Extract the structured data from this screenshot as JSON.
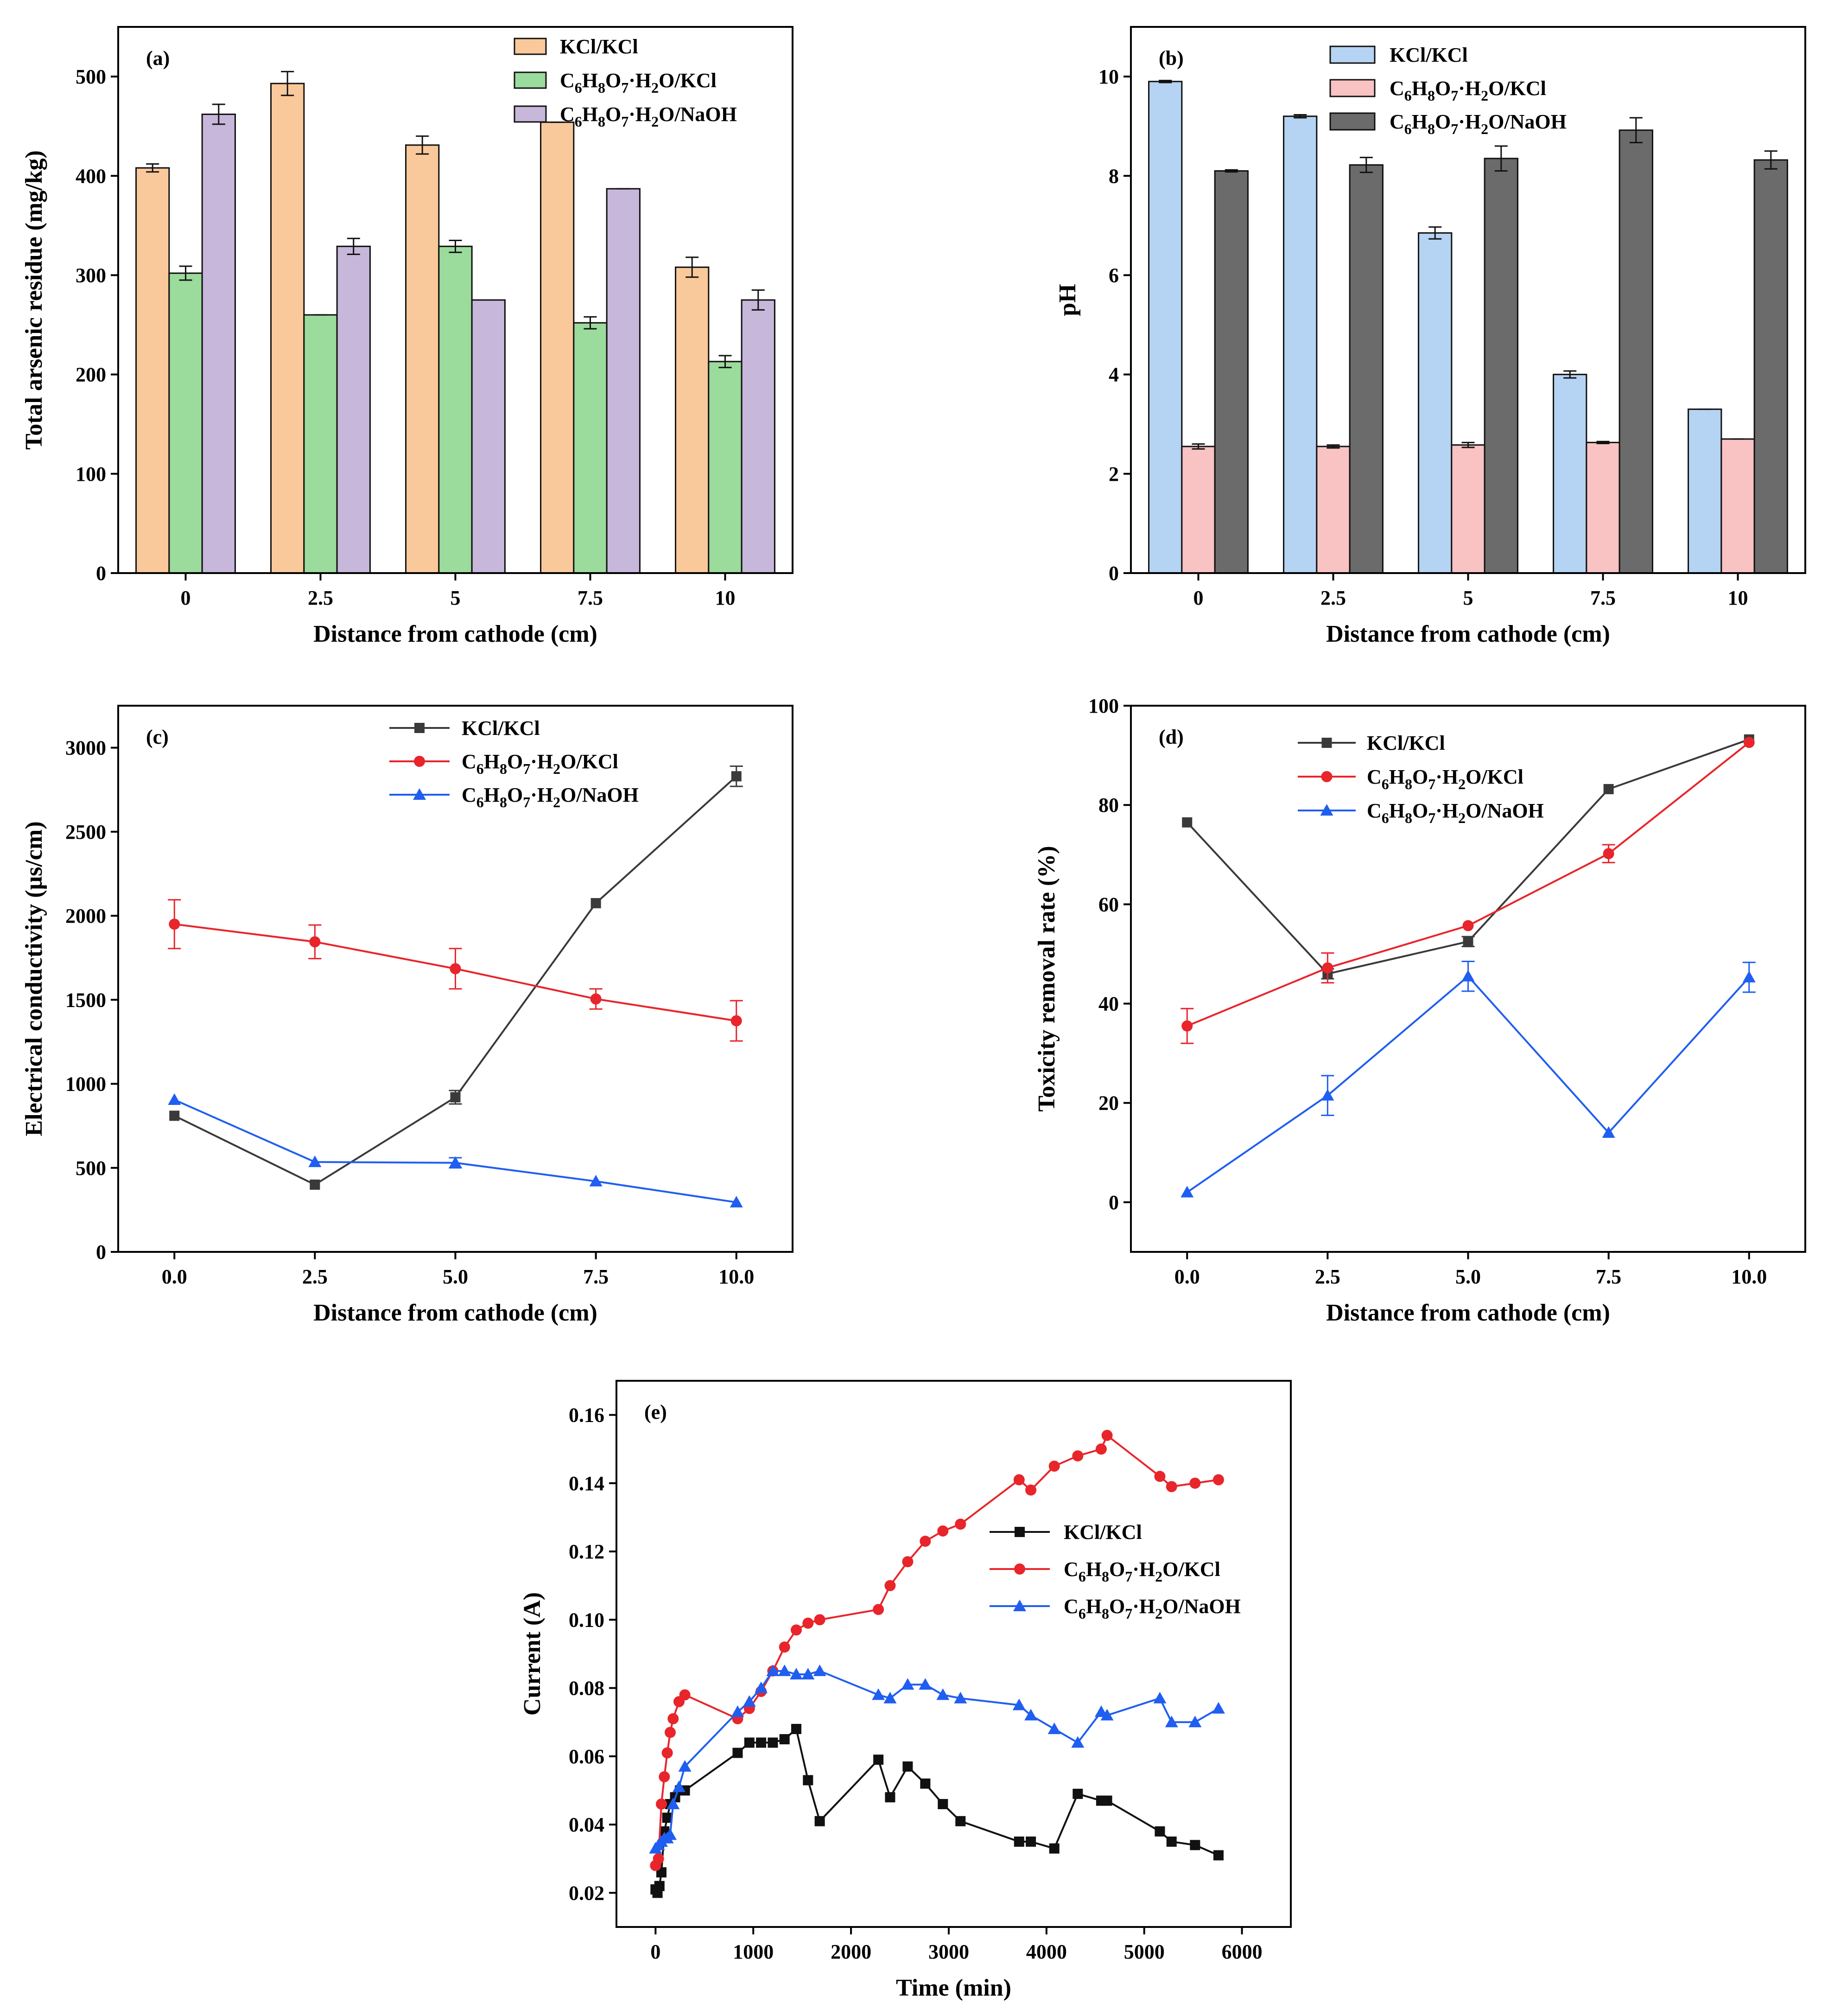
{
  "colors": {
    "orange": "#f9c99b",
    "green": "#9bdb9c",
    "purple": "#c7b7db",
    "light_blue": "#b5d3f2",
    "pink": "#f9c3c3",
    "dark_gray": "#6b6b6b",
    "line_gray": "#3a3a3a",
    "red": "#e8252b",
    "blue": "#1f5ef0",
    "black": "#111111"
  },
  "chart_data": [
    {
      "id": "a",
      "panel_label": "(a)",
      "type": "bar",
      "categories": [
        "0",
        "2.5",
        "5",
        "7.5",
        "10"
      ],
      "xlabel": "Distance from cathode (cm)",
      "ylabel": "Total arsenic residue (mg/kg)",
      "ylim": [
        0,
        550
      ],
      "yticks": [
        0,
        100,
        200,
        300,
        400,
        500
      ],
      "legend_position": "top-right",
      "series": [
        {
          "name": "KCl/KCl",
          "color": "#f9c99b",
          "values": [
            408,
            493,
            431,
            454,
            308
          ],
          "errors": [
            4,
            12,
            9,
            0,
            10
          ]
        },
        {
          "name": "C6H8O7·H2O/KCl",
          "color": "#9bdb9c",
          "values": [
            302,
            260,
            329,
            252,
            213
          ],
          "errors": [
            7,
            0,
            6,
            6,
            6
          ]
        },
        {
          "name": "C6H8O7·H2O/NaOH",
          "color": "#c7b7db",
          "values": [
            462,
            329,
            275,
            387,
            275
          ],
          "errors": [
            10,
            8,
            0,
            0,
            10
          ]
        }
      ]
    },
    {
      "id": "b",
      "panel_label": "(b)",
      "type": "bar",
      "categories": [
        "0",
        "2.5",
        "5",
        "7.5",
        "10"
      ],
      "xlabel": "Distance from cathode (cm)",
      "ylabel": "pH",
      "ylim": [
        0,
        11
      ],
      "yticks": [
        0,
        2,
        4,
        6,
        8,
        10
      ],
      "legend_position": "top-right",
      "series": [
        {
          "name": "KCl/KCl",
          "color": "#b5d3f2",
          "values": [
            9.9,
            9.2,
            6.85,
            4.0,
            3.3
          ],
          "errors": [
            0.02,
            0.03,
            0.12,
            0.07,
            0
          ]
        },
        {
          "name": "C6H8O7·H2O/KCl",
          "color": "#f9c3c3",
          "values": [
            2.55,
            2.55,
            2.58,
            2.63,
            2.7
          ],
          "errors": [
            0.05,
            0.03,
            0.05,
            0.02,
            0
          ]
        },
        {
          "name": "C6H8O7·H2O/NaOH",
          "color": "#6b6b6b",
          "values": [
            8.1,
            8.22,
            8.35,
            8.92,
            8.32
          ],
          "errors": [
            0.02,
            0.15,
            0.25,
            0.25,
            0.18
          ]
        }
      ]
    },
    {
      "id": "c",
      "panel_label": "(c)",
      "type": "line",
      "x": [
        0,
        2.5,
        5,
        7.5,
        10
      ],
      "xticks": [
        "0.0",
        "2.5",
        "5.0",
        "7.5",
        "10.0"
      ],
      "xlim": [
        -1,
        11
      ],
      "xlabel": "Distance from cathode (cm)",
      "ylabel": "Electrical conductivity (μs/cm)",
      "ylim": [
        0,
        3250
      ],
      "yticks": [
        0,
        500,
        1000,
        1500,
        2000,
        2500,
        3000
      ],
      "legend_position": "top-center",
      "series": [
        {
          "name": "KCl/KCl",
          "color": "#3a3a3a",
          "marker": "square",
          "values": [
            810,
            400,
            920,
            2075,
            2830
          ],
          "errors": [
            0,
            0,
            40,
            0,
            60
          ]
        },
        {
          "name": "C6H8O7·H2O/KCl",
          "color": "#e8252b",
          "marker": "circle",
          "values": [
            1950,
            1845,
            1685,
            1505,
            1375
          ],
          "errors": [
            145,
            100,
            120,
            60,
            120
          ]
        },
        {
          "name": "C6H8O7·H2O/NaOH",
          "color": "#1f5ef0",
          "marker": "triangle",
          "values": [
            905,
            535,
            530,
            420,
            295
          ],
          "errors": [
            0,
            0,
            30,
            0,
            0
          ]
        }
      ]
    },
    {
      "id": "d",
      "panel_label": "(d)",
      "type": "line",
      "x": [
        0,
        2.5,
        5,
        7.5,
        10
      ],
      "xticks": [
        "0.0",
        "2.5",
        "5.0",
        "7.5",
        "10.0"
      ],
      "xlim": [
        -1,
        11
      ],
      "xlabel": "Distance from cathode (cm)",
      "ylabel": "Toxicity removal rate (%)",
      "ylim": [
        -10,
        100
      ],
      "yticks": [
        0,
        20,
        40,
        60,
        80,
        100
      ],
      "legend_position": "top-left",
      "series": [
        {
          "name": "KCl/KCl",
          "color": "#3a3a3a",
          "marker": "square",
          "values": [
            76.5,
            46,
            52.5,
            83.2,
            93.2
          ],
          "errors": [
            0,
            1,
            1,
            0,
            0
          ]
        },
        {
          "name": "C6H8O7·H2O/KCl",
          "color": "#e8252b",
          "marker": "circle",
          "values": [
            35.5,
            47.2,
            55.7,
            70.2,
            92.6
          ],
          "errors": [
            3.5,
            3,
            0,
            1.8,
            0
          ]
        },
        {
          "name": "C6H8O7·H2O/NaOH",
          "color": "#1f5ef0",
          "marker": "triangle",
          "values": [
            2,
            21.5,
            45.5,
            14,
            45.3
          ],
          "errors": [
            0,
            4,
            3,
            0,
            3
          ]
        }
      ]
    },
    {
      "id": "e",
      "panel_label": "(e)",
      "type": "line",
      "xlabel": "Time (min)",
      "ylabel": "Current (A)",
      "xlim": [
        -400,
        6500
      ],
      "ylim": [
        0.01,
        0.17
      ],
      "xticks": [
        0,
        1000,
        2000,
        3000,
        4000,
        5000,
        6000
      ],
      "yticks": [
        0.02,
        0.04,
        0.06,
        0.08,
        0.1,
        0.12,
        0.14,
        0.16
      ],
      "ytick_labels": [
        "0.02",
        "0.04",
        "0.06",
        "0.08",
        "0.10",
        "0.12",
        "0.14",
        "0.16"
      ],
      "legend_position": "center-right",
      "series": [
        {
          "name": "KCl/KCl",
          "color": "#111111",
          "marker": "square",
          "x": [
            0,
            20,
            40,
            60,
            90,
            120,
            150,
            200,
            250,
            300,
            840,
            960,
            1080,
            1200,
            1320,
            1440,
            1560,
            1680,
            2280,
            2400,
            2580,
            2760,
            2940,
            3120,
            3720,
            3840,
            4080,
            4320,
            4560,
            4620,
            5160,
            5280,
            5520,
            5760
          ],
          "y": [
            0.021,
            0.02,
            0.022,
            0.026,
            0.038,
            0.042,
            0.046,
            0.048,
            0.05,
            0.05,
            0.061,
            0.064,
            0.064,
            0.064,
            0.065,
            0.068,
            0.053,
            0.041,
            0.059,
            0.048,
            0.057,
            0.052,
            0.046,
            0.041,
            0.035,
            0.035,
            0.033,
            0.049,
            0.047,
            0.047,
            0.038,
            0.035,
            0.034,
            0.031
          ]
        },
        {
          "name": "C6H8O7·H2O/KCl",
          "color": "#e8252b",
          "marker": "circle",
          "x": [
            0,
            30,
            60,
            90,
            120,
            150,
            180,
            240,
            300,
            840,
            960,
            1080,
            1200,
            1320,
            1440,
            1560,
            1680,
            2280,
            2400,
            2580,
            2760,
            2940,
            3120,
            3720,
            3840,
            4080,
            4320,
            4560,
            4620,
            5160,
            5280,
            5520,
            5760
          ],
          "y": [
            0.028,
            0.03,
            0.046,
            0.054,
            0.061,
            0.067,
            0.071,
            0.076,
            0.078,
            0.071,
            0.074,
            0.079,
            0.085,
            0.092,
            0.097,
            0.099,
            0.1,
            0.103,
            0.11,
            0.117,
            0.123,
            0.126,
            0.128,
            0.141,
            0.138,
            0.145,
            0.148,
            0.15,
            0.154,
            0.142,
            0.139,
            0.14,
            0.141
          ]
        },
        {
          "name": "C6H8O7·H2O/NaOH",
          "color": "#1f5ef0",
          "marker": "triangle",
          "x": [
            0,
            30,
            60,
            90,
            120,
            150,
            180,
            240,
            300,
            840,
            960,
            1080,
            1200,
            1320,
            1440,
            1560,
            1680,
            2280,
            2400,
            2580,
            2760,
            2940,
            3120,
            3720,
            3840,
            4080,
            4320,
            4560,
            4620,
            5160,
            5280,
            5520,
            5760
          ],
          "y": [
            0.033,
            0.034,
            0.035,
            0.036,
            0.036,
            0.037,
            0.046,
            0.051,
            0.057,
            0.073,
            0.076,
            0.08,
            0.085,
            0.085,
            0.084,
            0.084,
            0.085,
            0.078,
            0.077,
            0.081,
            0.081,
            0.078,
            0.077,
            0.075,
            0.072,
            0.068,
            0.064,
            0.073,
            0.072,
            0.077,
            0.07,
            0.07,
            0.074
          ]
        }
      ]
    }
  ]
}
